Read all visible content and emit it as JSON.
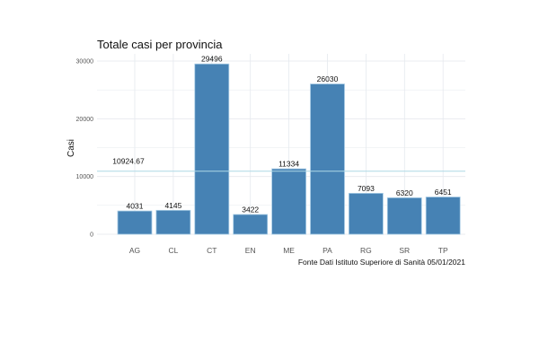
{
  "chart_data": {
    "type": "bar",
    "title": "Totale casi per provincia",
    "xlabel": "",
    "ylabel": "Casi",
    "caption": "Fonte Dati Istituto Superiore di Sanità 05/01/2021",
    "categories": [
      "AG",
      "CL",
      "CT",
      "EN",
      "ME",
      "PA",
      "RG",
      "SR",
      "TP"
    ],
    "values": [
      4031,
      4145,
      29496,
      3422,
      11334,
      26030,
      7093,
      6320,
      6451
    ],
    "value_labels": [
      "4031",
      "4145",
      "29496",
      "3422",
      "11334",
      "26030",
      "7093",
      "6320",
      "6451"
    ],
    "ylim": [
      0,
      30000
    ],
    "yticks": [
      0,
      10000,
      20000,
      30000
    ],
    "ytick_labels": [
      "0",
      "10000",
      "20000",
      "30000"
    ],
    "grid": true,
    "reference_line": {
      "value": 10924.67,
      "label": "10924.67"
    },
    "colors": {
      "bar": "#4682b4",
      "bar_outline": "#a9cde6",
      "mean_line": "#add8e6",
      "grid": "#e5e9ee"
    }
  }
}
